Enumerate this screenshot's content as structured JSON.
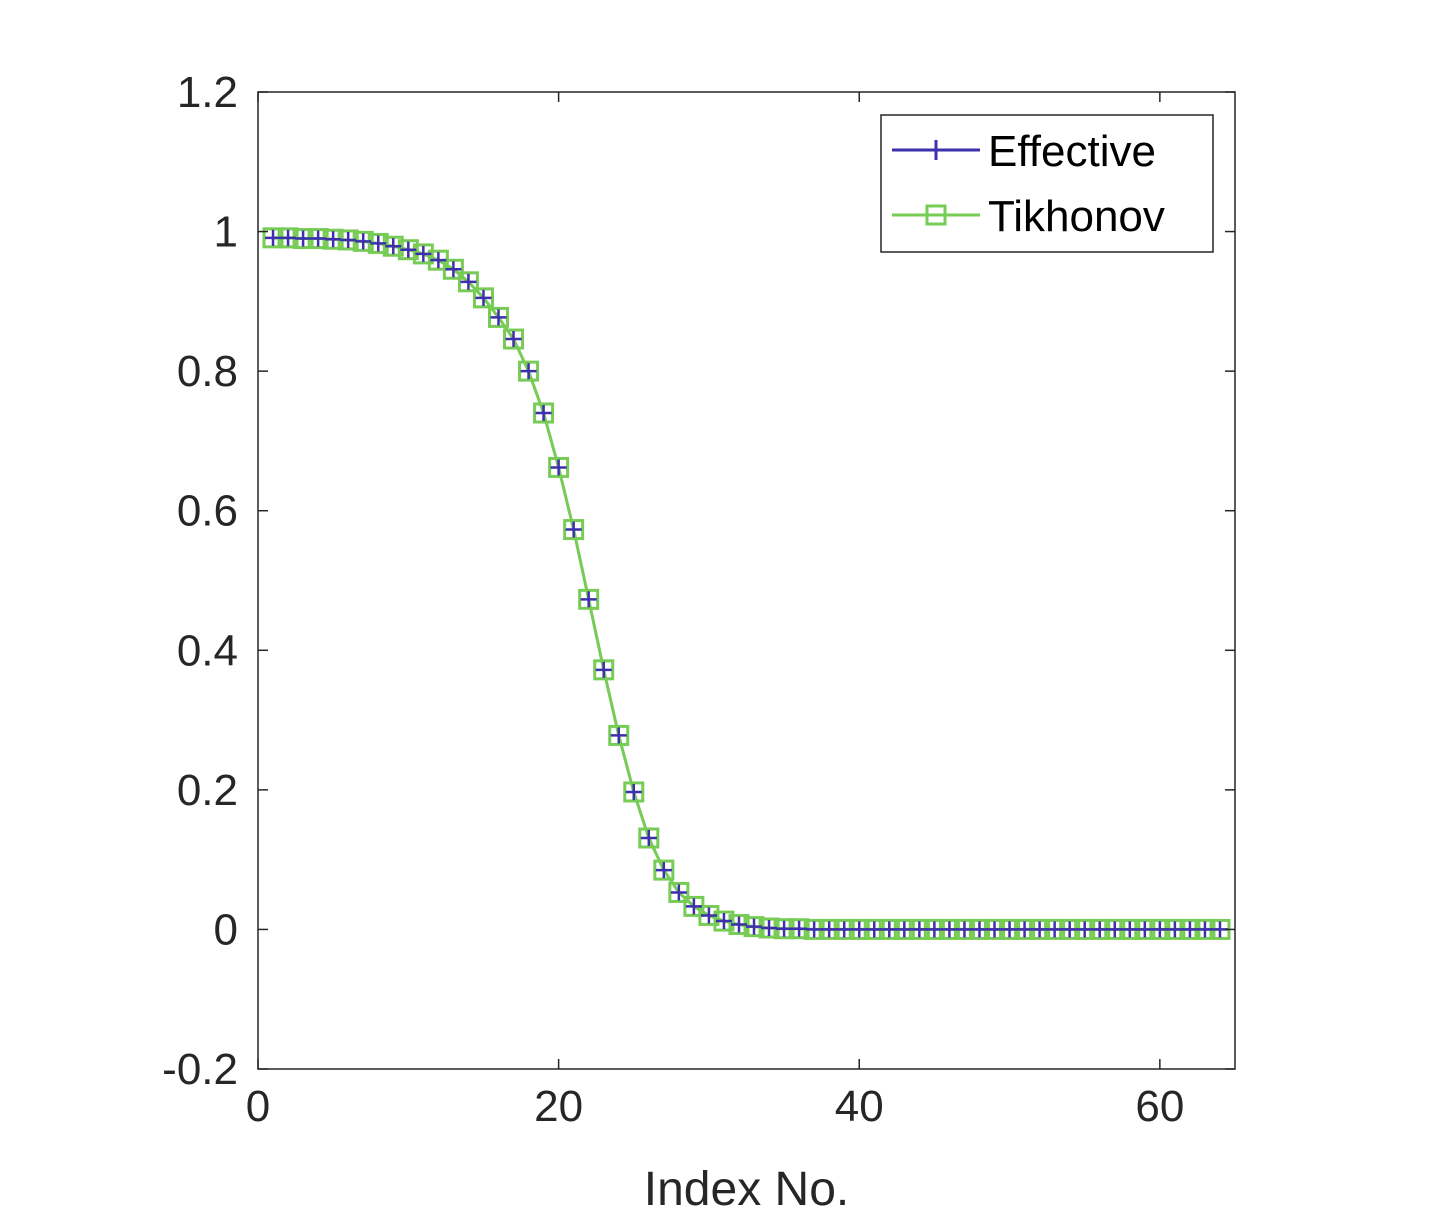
{
  "chart_data": {
    "type": "line",
    "title": "",
    "xlabel": "Index No.",
    "ylabel": "",
    "xlim": [
      0,
      65
    ],
    "ylim": [
      -0.2,
      1.2
    ],
    "xticks": [
      0,
      20,
      40,
      60
    ],
    "xtick_labels": [
      "0",
      "20",
      "40",
      "60"
    ],
    "yticks": [
      -0.2,
      0,
      0.2,
      0.4,
      0.6,
      0.8,
      1,
      1.2
    ],
    "ytick_labels": [
      "-0.2",
      "0",
      "0.2",
      "0.4",
      "0.6",
      "0.8",
      "1",
      "1.2"
    ],
    "grid": false,
    "legend_position": "top-right",
    "x": [
      1,
      2,
      3,
      4,
      5,
      6,
      7,
      8,
      9,
      10,
      11,
      12,
      13,
      14,
      15,
      16,
      17,
      18,
      19,
      20,
      21,
      22,
      23,
      24,
      25,
      26,
      27,
      28,
      29,
      30,
      31,
      32,
      33,
      34,
      35,
      36,
      37,
      38,
      39,
      40,
      41,
      42,
      43,
      44,
      45,
      46,
      47,
      48,
      49,
      50,
      51,
      52,
      53,
      54,
      55,
      56,
      57,
      58,
      59,
      60,
      61,
      62,
      63,
      64
    ],
    "series": [
      {
        "name": "Effective",
        "color": "#3d2fae",
        "marker": "plus",
        "values": [
          0.991,
          0.991,
          0.99,
          0.99,
          0.989,
          0.988,
          0.986,
          0.983,
          0.979,
          0.974,
          0.968,
          0.959,
          0.946,
          0.928,
          0.905,
          0.877,
          0.846,
          0.8,
          0.74,
          0.662,
          0.573,
          0.473,
          0.372,
          0.278,
          0.197,
          0.131,
          0.085,
          0.053,
          0.033,
          0.02,
          0.012,
          0.007,
          0.004,
          0.002,
          0.001,
          0.001,
          0,
          0,
          0,
          0,
          0,
          0,
          0,
          0,
          0,
          0,
          0,
          0,
          0,
          0,
          0,
          0,
          0,
          0,
          0,
          0,
          0,
          0,
          0,
          0,
          0,
          0,
          0,
          0
        ]
      },
      {
        "name": "Tikhonov",
        "color": "#77cc55",
        "marker": "square",
        "values": [
          0.991,
          0.991,
          0.99,
          0.99,
          0.989,
          0.988,
          0.986,
          0.983,
          0.979,
          0.974,
          0.968,
          0.959,
          0.946,
          0.928,
          0.905,
          0.877,
          0.846,
          0.8,
          0.74,
          0.662,
          0.573,
          0.473,
          0.372,
          0.278,
          0.197,
          0.131,
          0.085,
          0.053,
          0.033,
          0.02,
          0.012,
          0.007,
          0.004,
          0.002,
          0.001,
          0.001,
          0,
          0,
          0,
          0,
          0,
          0,
          0,
          0,
          0,
          0,
          0,
          0,
          0,
          0,
          0,
          0,
          0,
          0,
          0,
          0,
          0,
          0,
          0,
          0,
          0,
          0,
          0,
          0
        ]
      }
    ]
  }
}
